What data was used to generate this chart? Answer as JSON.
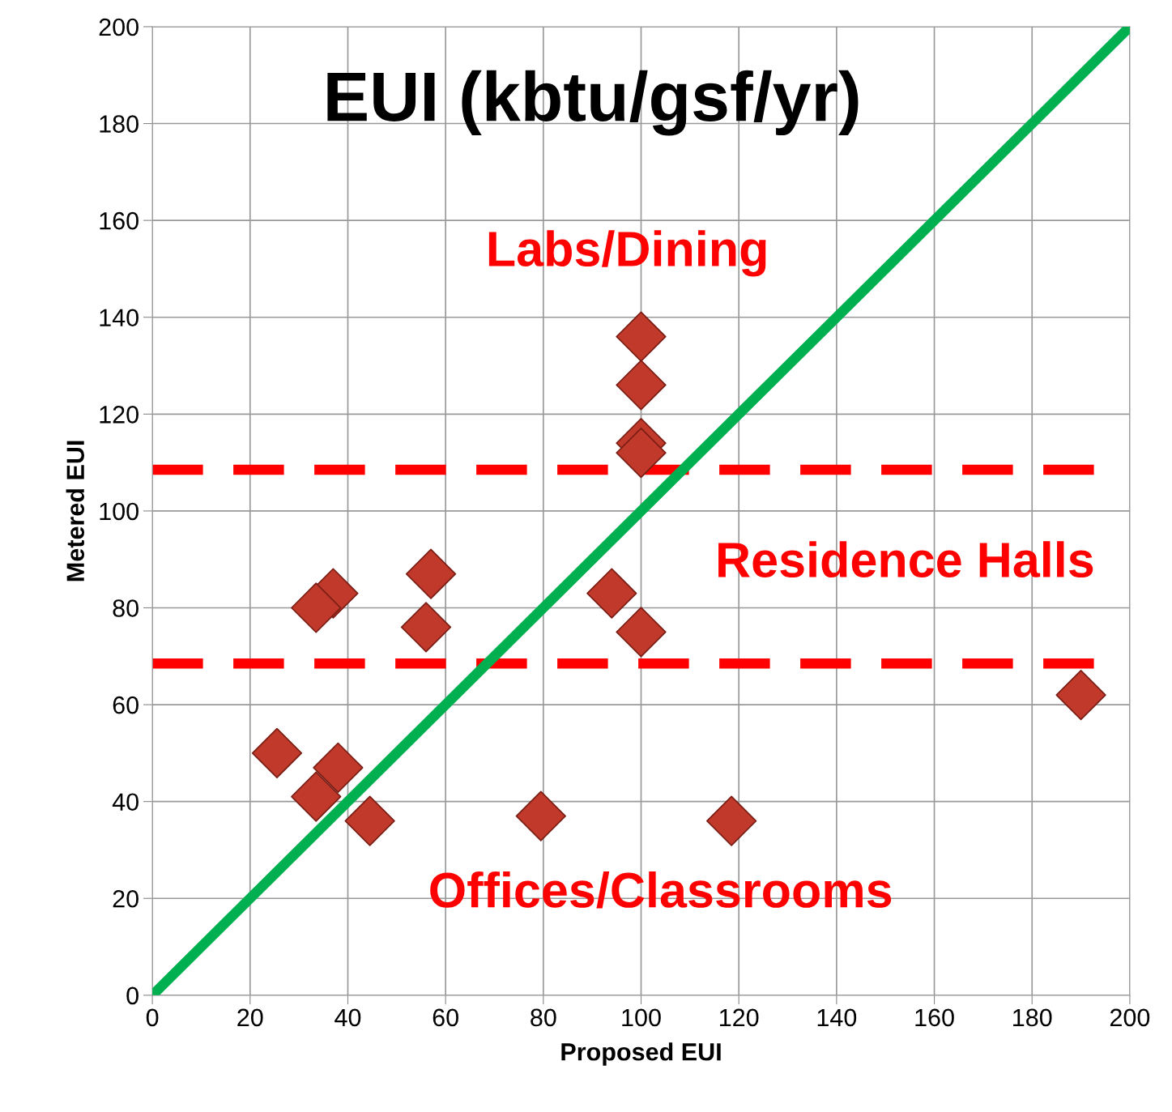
{
  "chart_data": {
    "type": "scatter",
    "title": "EUI (kbtu/gsf/yr)",
    "xlabel": "Proposed EUI",
    "ylabel": "Metered EUI",
    "xlim": [
      0,
      200
    ],
    "ylim": [
      0,
      200
    ],
    "xticks": [
      0,
      20,
      40,
      60,
      80,
      100,
      120,
      140,
      160,
      180,
      200
    ],
    "yticks": [
      0,
      20,
      40,
      60,
      80,
      100,
      120,
      140,
      160,
      180,
      200
    ],
    "grid": true,
    "series": [
      {
        "marker": "diamond",
        "color": "#c0392b",
        "x": [
          100,
          100,
          100,
          100,
          37,
          33.5,
          57,
          56,
          94,
          100,
          190,
          25.5,
          38,
          33.5,
          44.5,
          79.5,
          118.5
        ],
        "values": [
          136,
          126,
          114,
          112,
          83,
          80,
          87,
          76,
          83,
          75,
          62,
          50,
          47,
          41,
          36,
          37,
          36
        ]
      },
      {
        "type": "line",
        "color": "#00b050",
        "x": [
          0,
          200
        ],
        "values": [
          0,
          200
        ]
      }
    ],
    "ref_lines": [
      {
        "axis": "y",
        "value": 108.5,
        "color": "#ff0000",
        "line_style": "dashed"
      },
      {
        "axis": "y",
        "value": 68.5,
        "color": "#ff0000",
        "line_style": "dashed"
      }
    ],
    "annotations": [
      "Labs/Dining",
      "Residence Halls",
      "Offices/Classrooms"
    ]
  }
}
